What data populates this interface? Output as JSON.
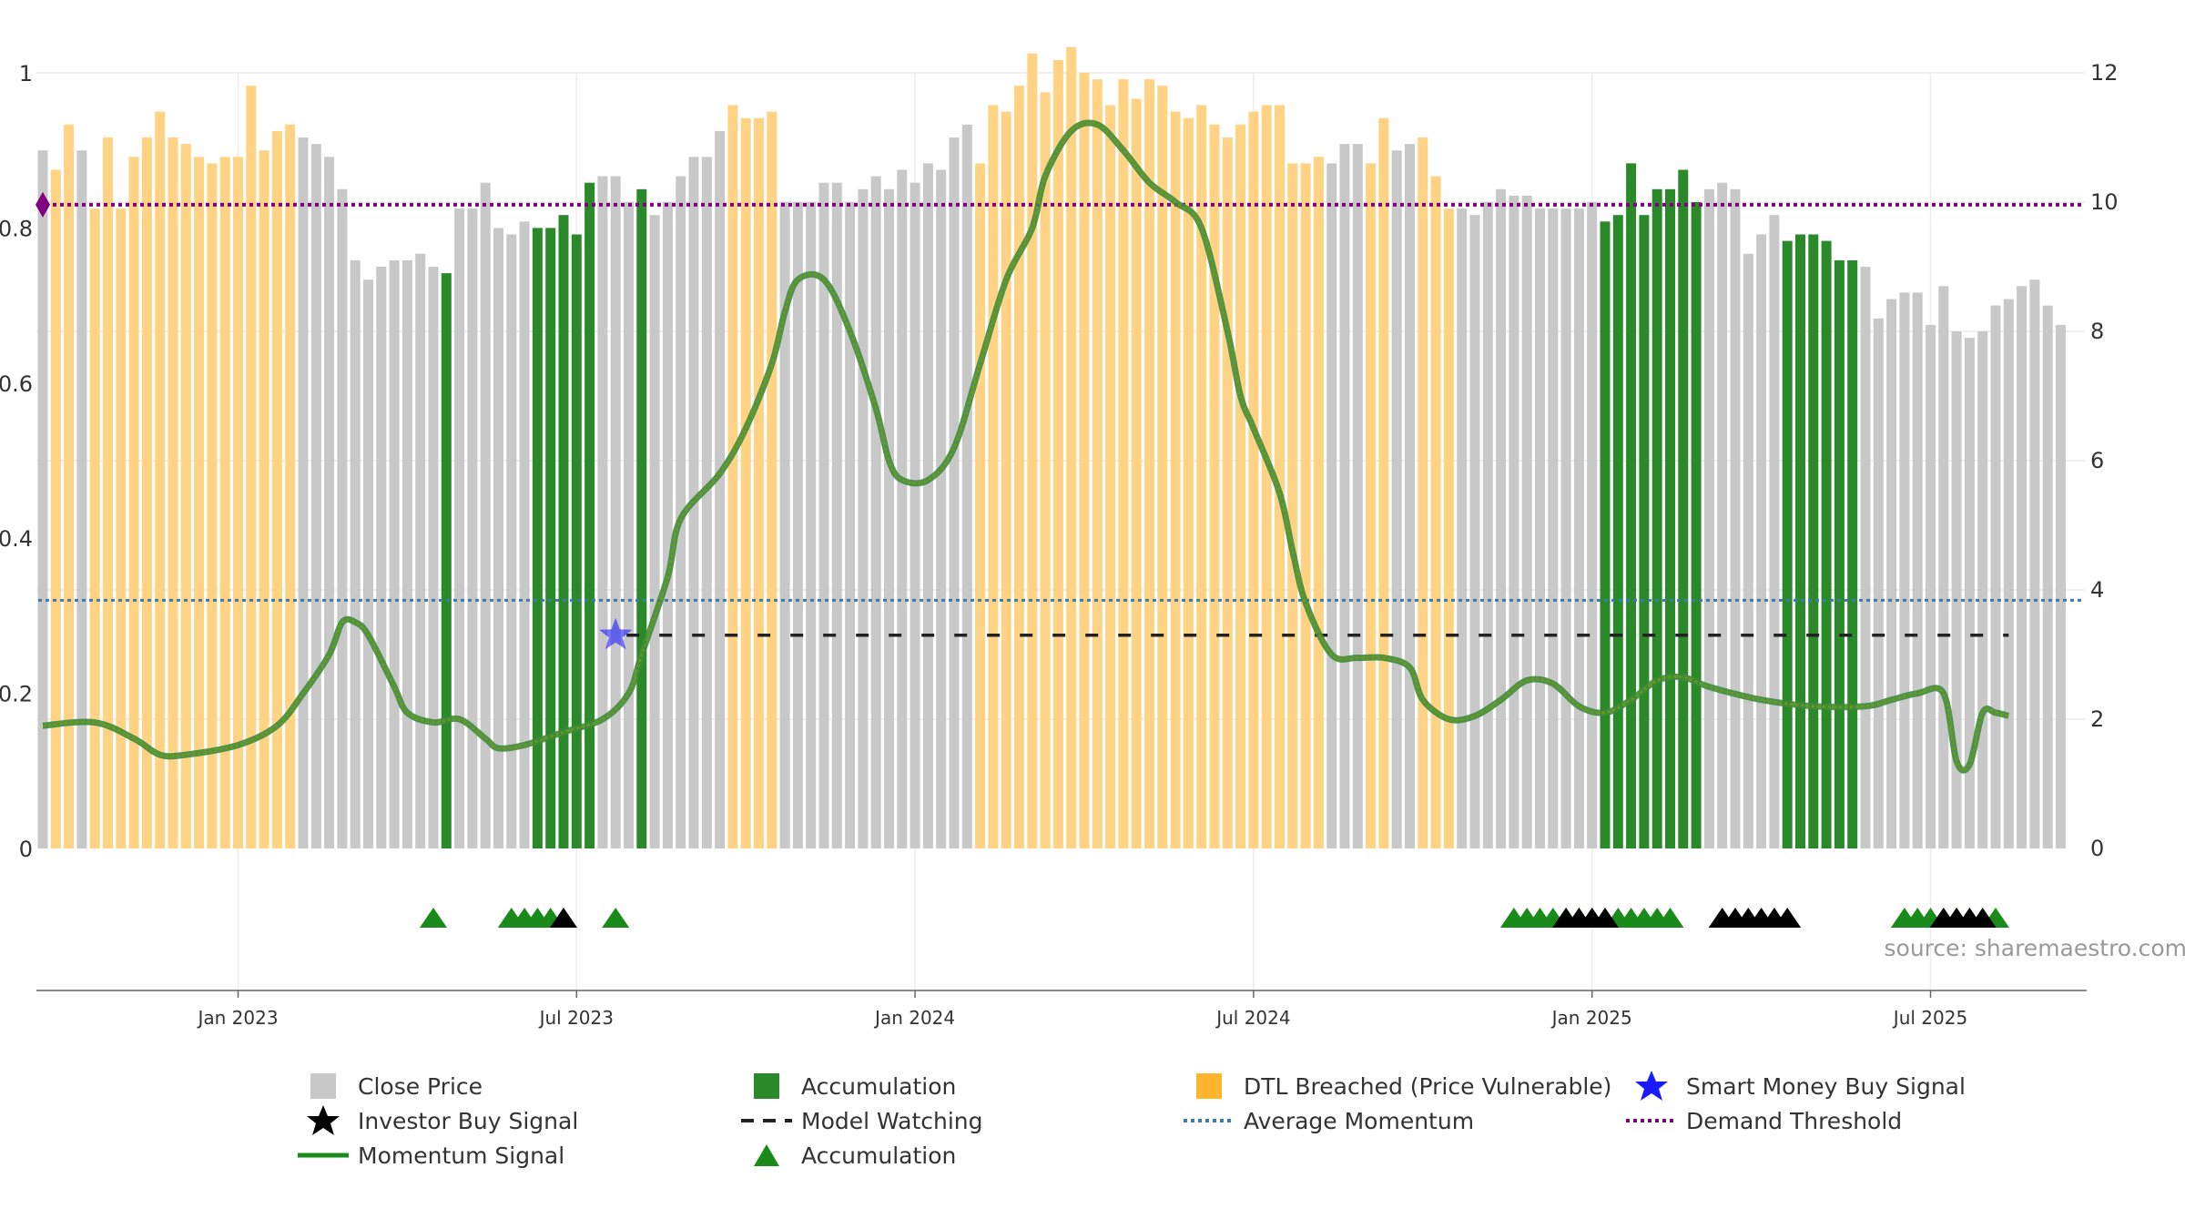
{
  "chart_data": {
    "type": "bar",
    "source_text": "source: sharemaestro.com",
    "left_axis": {
      "min": 0,
      "max": 1,
      "ticks": [
        0,
        0.2,
        0.4,
        0.6,
        0.8,
        1
      ],
      "tick_labels": [
        "0",
        "0.2",
        "0.4",
        "0.6",
        "0.8",
        "1"
      ]
    },
    "right_axis": {
      "min": 0,
      "max": 12,
      "ticks": [
        0,
        2,
        4,
        6,
        8,
        10,
        12
      ],
      "tick_labels": [
        "0",
        "2",
        "4",
        "6",
        "8",
        "10",
        "12"
      ]
    },
    "x_labels": [
      {
        "label": "Jan 2023",
        "week": 15
      },
      {
        "label": "Jul 2023",
        "week": 41
      },
      {
        "label": "Jan 2024",
        "week": 67
      },
      {
        "label": "Jul 2024",
        "week": 93
      },
      {
        "label": "Jan 2025",
        "week": 119
      },
      {
        "label": "Jul 2025",
        "week": 145
      }
    ],
    "bar_states_legend": {
      "g": "Close Price",
      "a": "Accumulation",
      "o": "DTL Breached (Price Vulnerable)"
    },
    "bars": {
      "close": [
        10.8,
        10.5,
        11.2,
        10.8,
        9.9,
        11.0,
        9.9,
        10.7,
        11.0,
        11.4,
        11.0,
        10.9,
        10.7,
        10.6,
        10.7,
        10.7,
        11.8,
        10.8,
        11.1,
        11.2,
        11.0,
        10.9,
        10.7,
        10.2,
        9.1,
        8.8,
        9.0,
        9.1,
        9.1,
        9.2,
        9.0,
        8.9,
        9.9,
        9.9,
        10.3,
        9.6,
        9.5,
        9.7,
        9.6,
        9.6,
        9.8,
        9.5,
        10.3,
        10.4,
        10.4,
        10.0,
        10.2,
        9.8,
        10.0,
        10.4,
        10.7,
        10.7,
        11.1,
        11.5,
        11.3,
        11.3,
        11.4,
        10.0,
        10.0,
        10.0,
        10.3,
        10.3,
        10.0,
        10.2,
        10.4,
        10.2,
        10.5,
        10.3,
        10.6,
        10.5,
        11.0,
        11.2,
        10.6,
        11.5,
        11.4,
        11.8,
        12.3,
        11.7,
        12.2,
        12.4,
        12.0,
        11.9,
        11.5,
        11.9,
        11.6,
        11.9,
        11.8,
        11.4,
        11.3,
        11.5,
        11.2,
        11.0,
        11.2,
        11.4,
        11.5,
        11.5,
        10.6,
        10.6,
        10.7,
        10.6,
        10.9,
        10.9,
        10.6,
        11.3,
        10.8,
        10.9,
        11.0,
        10.4,
        9.9,
        9.9,
        9.8,
        10.0,
        10.2,
        10.1,
        10.1,
        9.9,
        9.9,
        9.9,
        9.9,
        10.0,
        9.7,
        9.8,
        10.6,
        9.8,
        10.2,
        10.2,
        10.5,
        10.0,
        10.2,
        10.3,
        10.2,
        9.2,
        9.5,
        9.8,
        9.4,
        9.5,
        9.5,
        9.4,
        9.1,
        9.1,
        9.0,
        8.2,
        8.5,
        8.6,
        8.6,
        8.1,
        8.7,
        8.0,
        7.9,
        8.0,
        8.4,
        8.5,
        8.7,
        8.8,
        8.4,
        8.1
      ],
      "state": "googoooooooooooooooogggggggggggaggggggaaaaagggaggggggoooogggggggggggggggooooooooooooooooooooooooooogggooggooogggggggggggaaaaaaaaggggggaaaaaagggggggggggggggggaaaaaagggggag"
    },
    "momentum_signal": {
      "name": "Momentum Signal",
      "points": [
        [
          0,
          1.9
        ],
        [
          4,
          1.95
        ],
        [
          7,
          1.7
        ],
        [
          9,
          1.45
        ],
        [
          11,
          1.45
        ],
        [
          15,
          1.6
        ],
        [
          18,
          1.9
        ],
        [
          20,
          2.4
        ],
        [
          22,
          3.0
        ],
        [
          23,
          3.5
        ],
        [
          24,
          3.5
        ],
        [
          25,
          3.3
        ],
        [
          27,
          2.5
        ],
        [
          28,
          2.1
        ],
        [
          30,
          1.95
        ],
        [
          32,
          2.0
        ],
        [
          34,
          1.7
        ],
        [
          35,
          1.55
        ],
        [
          37,
          1.6
        ],
        [
          40,
          1.8
        ],
        [
          43,
          2.0
        ],
        [
          45,
          2.4
        ],
        [
          46,
          3.0
        ],
        [
          48,
          4.2
        ],
        [
          49,
          5.1
        ],
        [
          52,
          5.8
        ],
        [
          54,
          6.5
        ],
        [
          56,
          7.5
        ],
        [
          57,
          8.3
        ],
        [
          58,
          8.8
        ],
        [
          60,
          8.8
        ],
        [
          62,
          8.0
        ],
        [
          64,
          6.8
        ],
        [
          65,
          6.0
        ],
        [
          66,
          5.7
        ],
        [
          68,
          5.7
        ],
        [
          70,
          6.2
        ],
        [
          72,
          7.5
        ],
        [
          74,
          8.8
        ],
        [
          76,
          9.6
        ],
        [
          77,
          10.4
        ],
        [
          79,
          11.1
        ],
        [
          81,
          11.2
        ],
        [
          83,
          10.8
        ],
        [
          85,
          10.3
        ],
        [
          87,
          10.0
        ],
        [
          89,
          9.6
        ],
        [
          91,
          8.0
        ],
        [
          92,
          7.0
        ],
        [
          93,
          6.5
        ],
        [
          95,
          5.5
        ],
        [
          96,
          4.6
        ],
        [
          97,
          3.8
        ],
        [
          99,
          3.0
        ],
        [
          101,
          2.95
        ],
        [
          103,
          2.95
        ],
        [
          105,
          2.8
        ],
        [
          106,
          2.3
        ],
        [
          108,
          2.0
        ],
        [
          110,
          2.05
        ],
        [
          112,
          2.3
        ],
        [
          114,
          2.6
        ],
        [
          116,
          2.55
        ],
        [
          118,
          2.2
        ],
        [
          120,
          2.1
        ],
        [
          122,
          2.3
        ],
        [
          124,
          2.6
        ],
        [
          126,
          2.65
        ],
        [
          128,
          2.5
        ],
        [
          132,
          2.3
        ],
        [
          136,
          2.2
        ],
        [
          140,
          2.2
        ],
        [
          142,
          2.3
        ],
        [
          144,
          2.4
        ],
        [
          146,
          2.4
        ],
        [
          147,
          1.35
        ],
        [
          148,
          1.3
        ],
        [
          149,
          2.1
        ],
        [
          150,
          2.1
        ],
        [
          151,
          2.05
        ]
      ]
    },
    "demand_threshold": {
      "name": "Demand Threshold",
      "value": 0.83
    },
    "average_momentum": {
      "name": "Average Momentum",
      "value": 0.32
    },
    "model_watching": {
      "name": "Model Watching",
      "value": 3.3,
      "from_week": 44,
      "to_week": 151
    },
    "smart_money_buy_signal": {
      "name": "Smart Money Buy Signal",
      "week": 44,
      "value": 3.3
    },
    "accumulation_markers": [
      30,
      36,
      37,
      38,
      39,
      44,
      113,
      114,
      115,
      116,
      117,
      118,
      119,
      121,
      122,
      123,
      124,
      125,
      143,
      144,
      145,
      146,
      147,
      148,
      150
    ],
    "investor_buy_markers": [
      40,
      117,
      118,
      119,
      120,
      129,
      130,
      131,
      132,
      133,
      134,
      146,
      147,
      148,
      149
    ],
    "legend": {
      "close_price": "Close Price",
      "accumulation": "Accumulation",
      "dtl_breached": "DTL Breached (Price Vulnerable)",
      "smart_money": "Smart Money Buy Signal",
      "investor_buy": "Investor Buy Signal",
      "model_watching": "Model Watching",
      "average_momentum": "Average Momentum",
      "demand_threshold": "Demand Threshold",
      "momentum_signal": "Momentum Signal",
      "accumulation_marker": "Accumulation"
    },
    "colors": {
      "close_price": "#c8c8c8",
      "accumulation": "#2a8a2a",
      "dtl_breached": "#ffd383",
      "momentum": "#3e8b3e",
      "momentum_highlight": "#7a9a00",
      "demand_threshold": "#800080",
      "average_momentum": "#3a7ca5",
      "model_watching": "#222222",
      "smart_money": "#1a1aff",
      "investor_buy": "#000000",
      "accumulation_marker": "#1a8a1a"
    }
  }
}
